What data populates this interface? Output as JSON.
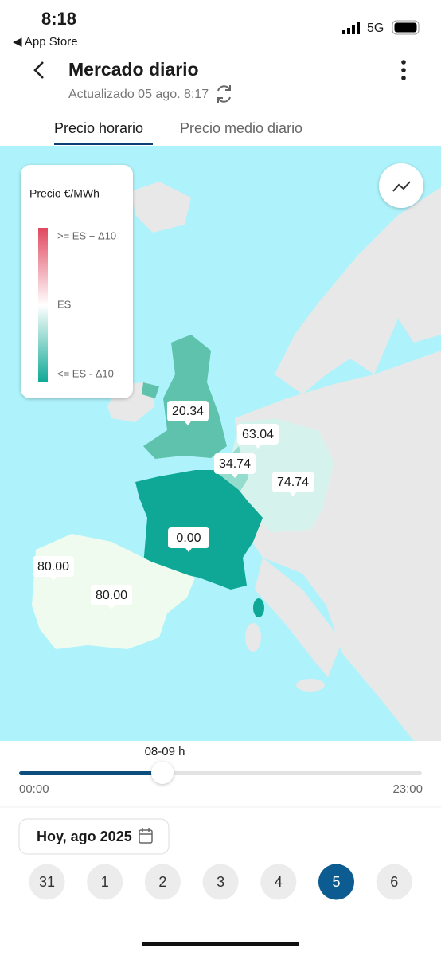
{
  "status": {
    "time": "8:18",
    "back_app": "◀ App Store",
    "network": "5G"
  },
  "header": {
    "title": "Mercado diario",
    "updated": "Actualizado 05 ago. 8:17"
  },
  "tabs": [
    {
      "label": "Precio horario",
      "active": true
    },
    {
      "label": "Precio medio diario"
    }
  ],
  "legend": {
    "title": "Precio €/MWh",
    "labels": [
      ">= ES + Δ10",
      "ES",
      "<= ES - Δ10"
    ]
  },
  "map": {
    "price_labels": [
      "20.34",
      "63.04",
      "34.74",
      "74.74",
      "0.00",
      "80.00",
      "80.00"
    ]
  },
  "slider": {
    "current": "08-09 h",
    "start": "00:00",
    "end": "23:00"
  },
  "date_picker": {
    "label": "Hoy, ago 2025"
  },
  "days": [
    {
      "label": "31"
    },
    {
      "label": "1"
    },
    {
      "label": "2"
    },
    {
      "label": "3"
    },
    {
      "label": "4"
    },
    {
      "label": "5",
      "selected": true
    },
    {
      "label": "6"
    }
  ]
}
